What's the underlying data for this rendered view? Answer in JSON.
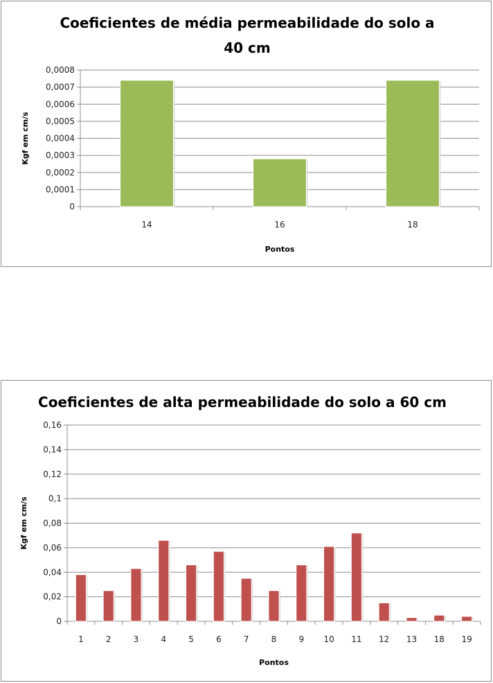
{
  "chart_data": [
    {
      "type": "bar",
      "title_lines": [
        "Coeficientes de média permeabilidade do solo a",
        "40 cm"
      ],
      "xlabel": "Pontos",
      "ylabel": "Kgf em cm/s",
      "categories": [
        "14",
        "16",
        "18"
      ],
      "values": [
        0.00074,
        0.00028,
        0.00074
      ],
      "ylim": [
        0,
        0.0008
      ],
      "yticks": [
        "0",
        "0,0001",
        "0,0002",
        "0,0003",
        "0,0004",
        "0,0005",
        "0,0006",
        "0,0007",
        "0,0008"
      ],
      "bar_color": "#9bbb59",
      "grid": true,
      "legend": "none"
    },
    {
      "type": "bar",
      "title_lines": [
        "Coeficientes de alta permeabilidade do solo a 60 cm"
      ],
      "xlabel": "Pontos",
      "ylabel": "Kgf em cm/s",
      "categories": [
        "1",
        "2",
        "3",
        "4",
        "5",
        "6",
        "7",
        "8",
        "9",
        "10",
        "11",
        "12",
        "13",
        "18",
        "19"
      ],
      "values": [
        0.038,
        0.025,
        0.043,
        0.066,
        0.046,
        0.057,
        0.035,
        0.025,
        0.046,
        0.061,
        0.072,
        0.015,
        0.003,
        0.005,
        0.004
      ],
      "ylim": [
        0,
        0.16
      ],
      "yticks": [
        "0",
        "0,02",
        "0,04",
        "0,06",
        "0,08",
        "0,1",
        "0,12",
        "0,14",
        "0,16"
      ],
      "bar_color": "#c0504d",
      "grid": true,
      "legend": "none"
    }
  ]
}
